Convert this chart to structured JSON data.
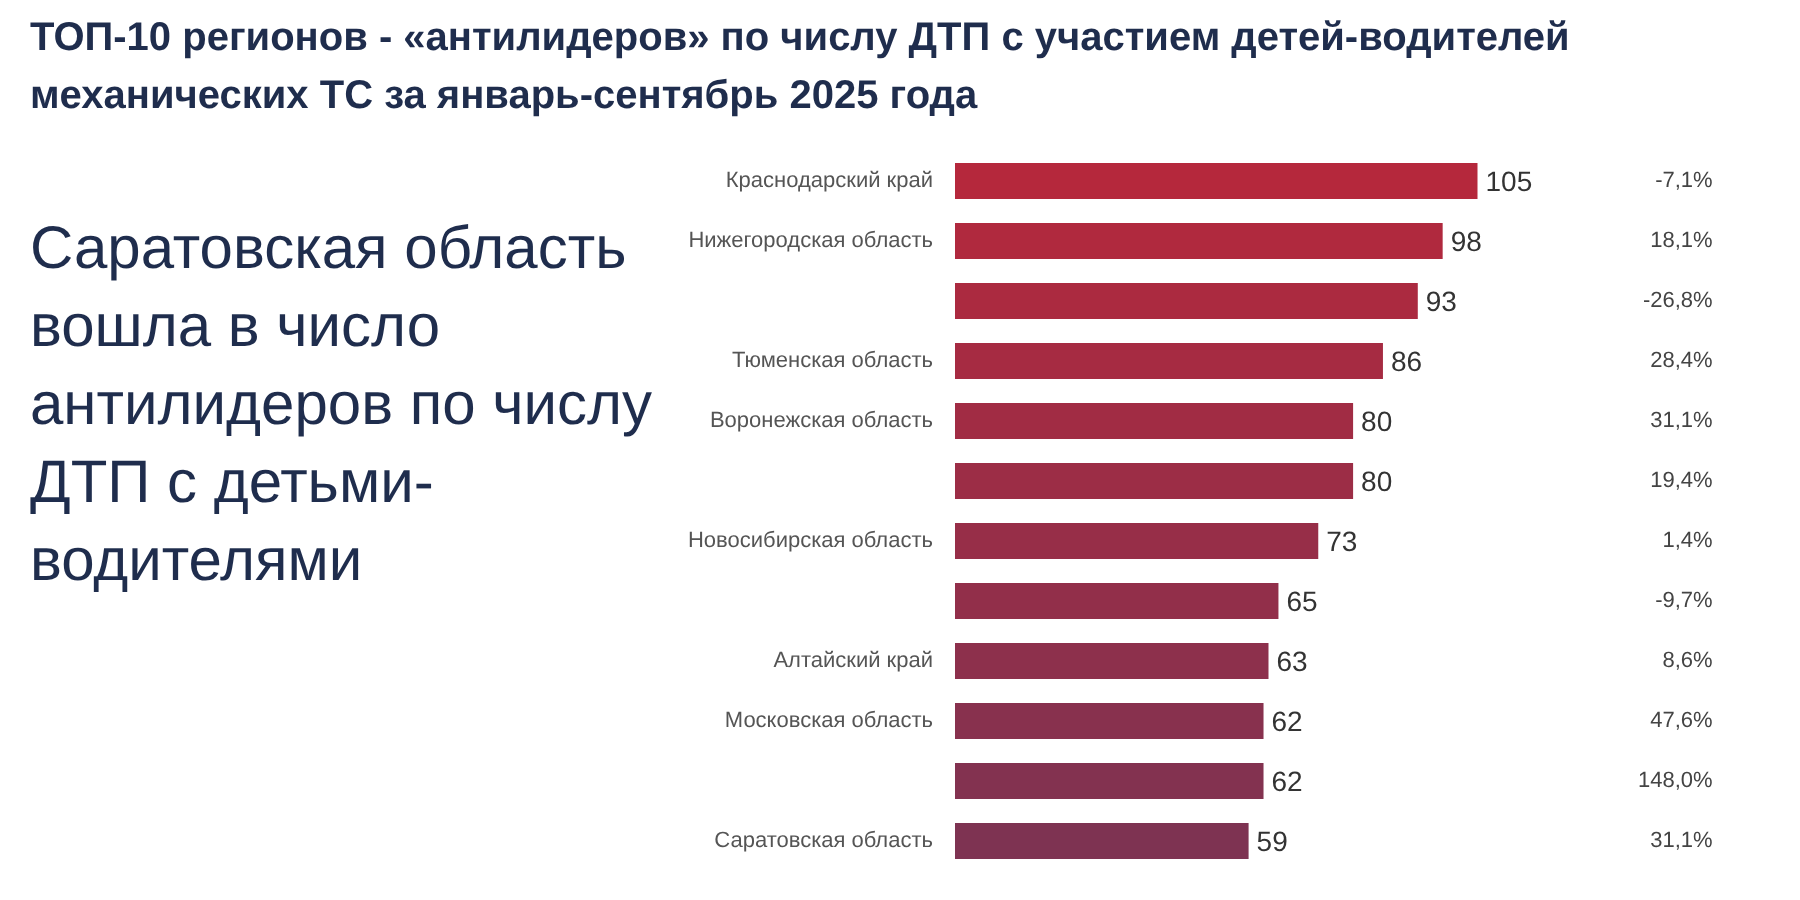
{
  "chart_data": {
    "type": "bar",
    "orientation": "horizontal",
    "title": "ТОП-10 регионов - «антилидеров» по числу ДТП с участием детей-водителей механических ТС за январь-сентябрь 2025 года",
    "subtitle": "Саратовская область вошла в число антилидеров по числу ДТП с детьми-водителями",
    "categories": [
      "Краснодарский край",
      "Нижегородская область",
      null,
      "Тюменская область",
      "Воронежская область",
      null,
      "Новосибирская область",
      null,
      "Алтайский край",
      "Московская область",
      null,
      "Саратовская область"
    ],
    "values": [
      105,
      98,
      93,
      86,
      80,
      80,
      73,
      65,
      63,
      62,
      62,
      59
    ],
    "colors": [
      "#b5283c",
      "#b0293e",
      "#ab2a40",
      "#a62b42",
      "#a12c44",
      "#9c2d46",
      "#972e48",
      "#922f4a",
      "#8d304c",
      "#88314e",
      "#833250",
      "#7e3352"
    ],
    "data_labels": true,
    "annotations": [
      "-7,1%",
      "18,1%",
      "-26,8%",
      "28,4%",
      "31,1%",
      "19,4%",
      "1,4%",
      "-9,7%",
      "8,6%",
      "47,6%",
      "148,0%",
      "31,1%"
    ]
  }
}
